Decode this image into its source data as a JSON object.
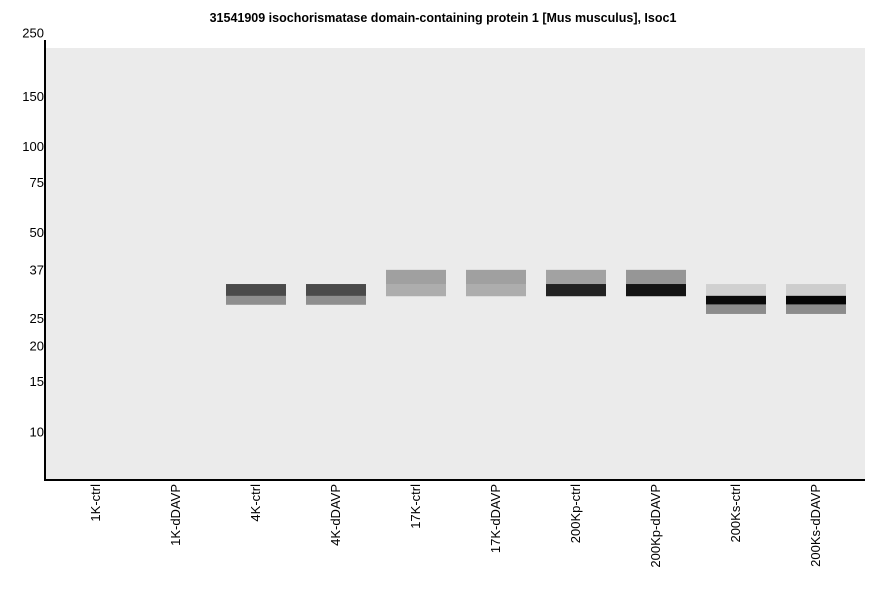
{
  "chart_data": {
    "type": "heatmap",
    "title": "31541909 isochorismatase domain-containing protein 1 [Mus musculus], Isoc1",
    "y_scale": "log",
    "y_ticks": [
      250,
      150,
      100,
      75,
      50,
      37,
      25,
      20,
      15,
      10
    ],
    "lanes": [
      "1K-ctrl",
      "1K-dDAVP",
      "4K-ctrl",
      "4K-dDAVP",
      "17K-ctrl",
      "17K-dDAVP",
      "200Kp-ctrl",
      "200Kp-dDAVP",
      "200Ks-ctrl",
      "200Ks-dDAVP"
    ],
    "band_rows": [
      {
        "kda_top": 37,
        "kda_bottom": 33
      },
      {
        "kda_top": 33,
        "kda_bottom": 30
      },
      {
        "kda_top": 30,
        "kda_bottom": 28
      },
      {
        "kda_top": 28,
        "kda_bottom": 26
      }
    ],
    "bands": [
      [
        null,
        null,
        null,
        null
      ],
      [
        null,
        null,
        null,
        null
      ],
      [
        null,
        "#4a4a4a",
        "#8e8e8e",
        null
      ],
      [
        null,
        "#4a4a4a",
        "#8e8e8e",
        null
      ],
      [
        "#a0a0a0",
        "#adadad",
        null,
        null
      ],
      [
        "#a0a0a0",
        "#adadad",
        null,
        null
      ],
      [
        "#a2a2a2",
        "#222222",
        null,
        null
      ],
      [
        "#969696",
        "#141414",
        null,
        null
      ],
      [
        null,
        "#d0d0d0",
        "#0a0a0a",
        "#8c8c8c"
      ],
      [
        null,
        "#cdcdcd",
        "#050505",
        "#8c8c8c"
      ]
    ]
  }
}
